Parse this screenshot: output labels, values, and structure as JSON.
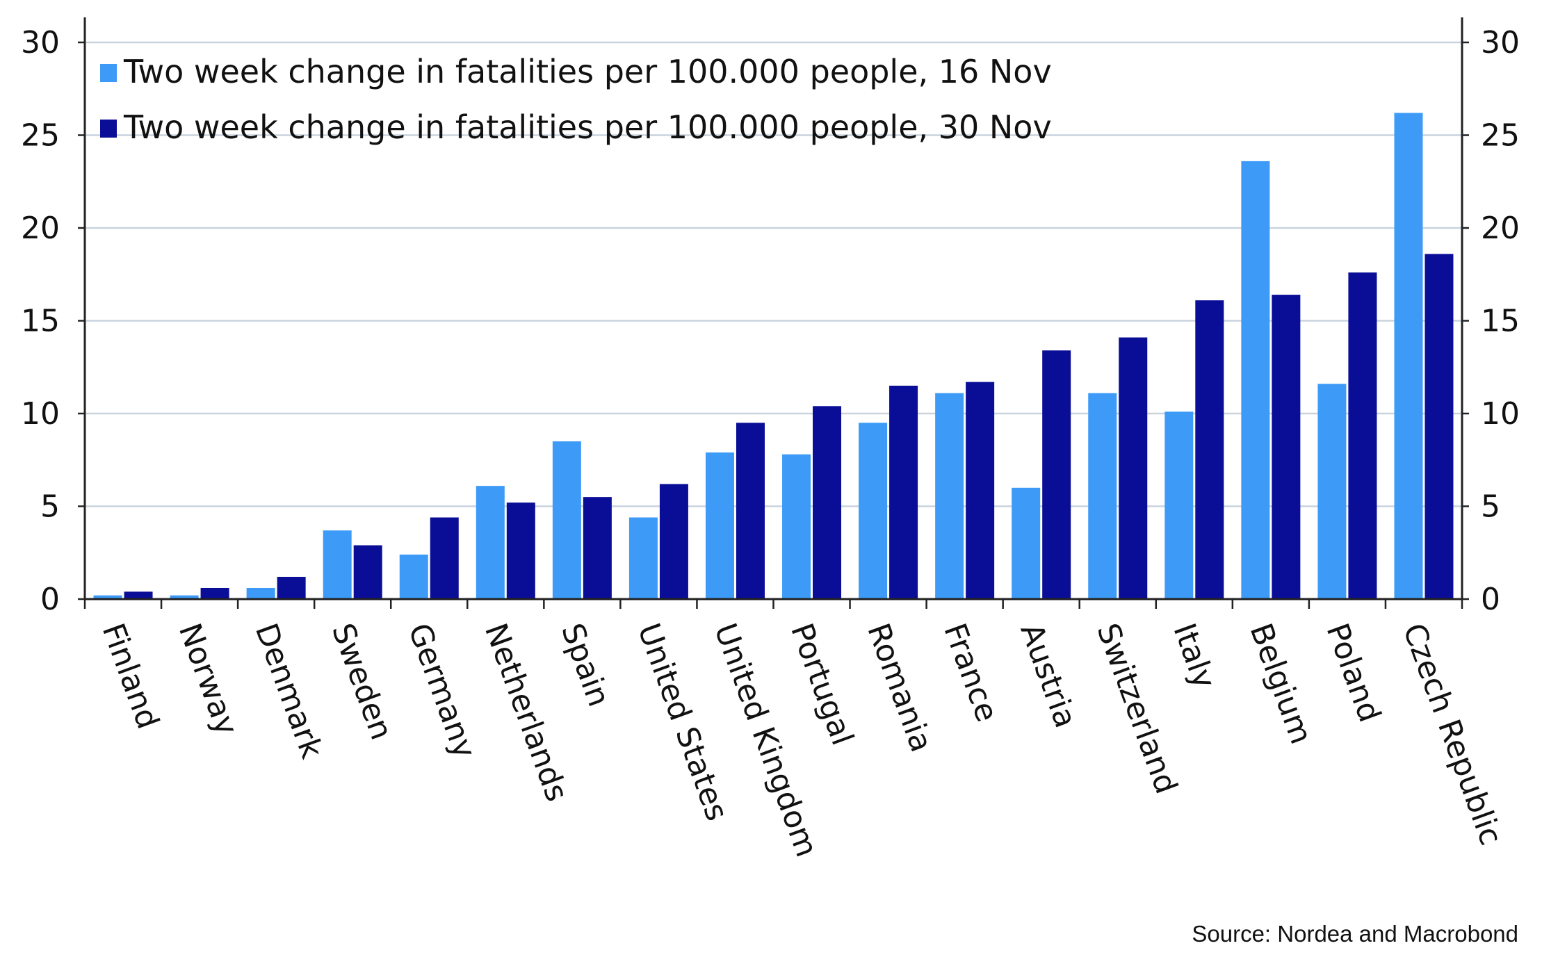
{
  "chart_data": {
    "type": "bar",
    "categories": [
      "Finland",
      "Norway",
      "Denmark",
      "Sweden",
      "Germany",
      "Netherlands",
      "Spain",
      "United States",
      "United Kingdom",
      "Portugal",
      "Romania",
      "France",
      "Austria",
      "Switzerland",
      "Italy",
      "Belgium",
      "Poland",
      "Czech Republic"
    ],
    "series": [
      {
        "name": "Two week change in fatalities per 100.000 people, 16 Nov",
        "color": "#3d9bf7",
        "values": [
          0.2,
          0.2,
          0.6,
          3.7,
          2.4,
          6.1,
          8.5,
          4.4,
          7.9,
          7.8,
          9.5,
          11.1,
          6.0,
          11.1,
          10.1,
          23.6,
          11.6,
          26.2
        ]
      },
      {
        "name": "Two week change in fatalities per 100.000 people, 30 Nov",
        "color": "#0a0d96",
        "values": [
          0.4,
          0.6,
          1.2,
          2.9,
          4.4,
          5.2,
          5.5,
          6.2,
          9.5,
          10.4,
          11.5,
          11.7,
          13.4,
          14.1,
          16.1,
          16.4,
          17.6,
          18.6
        ]
      }
    ],
    "ylim": [
      0,
      31
    ],
    "yticks": [
      0,
      5,
      10,
      15,
      20,
      25,
      30
    ],
    "ytick_labels": [
      "0",
      "5",
      "10",
      "15",
      "20",
      "25",
      "30"
    ],
    "xlabel": "",
    "ylabel": "",
    "grid": true,
    "legend_position": "top-left",
    "secondary_y_axis": true,
    "source": "Source: Nordea and Macrobond"
  }
}
